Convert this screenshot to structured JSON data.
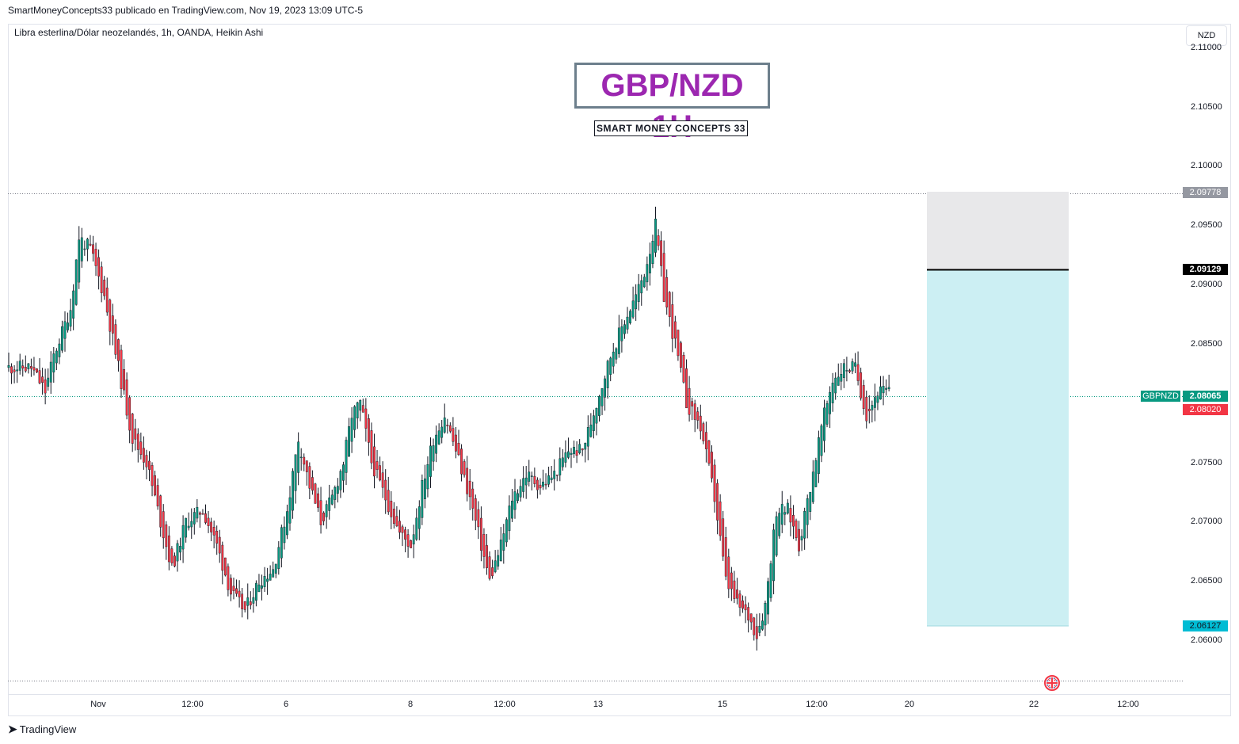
{
  "header": {
    "published_by": "SmartMoneyConcepts33 publicado en TradingView.com, Nov 19, 2023 13:09 UTC-5",
    "symbol_description": "Libra esterlina/Dólar neozelandés, 1h, OANDA, Heikin Ashi",
    "currency_button": "NZD"
  },
  "annotations": {
    "title": "GBP/NZD 1H",
    "subtitle": "SMART MONEY CONCEPTS 33"
  },
  "price_axis": {
    "ticks": [
      "2.11000",
      "2.10500",
      "2.10000",
      "2.09500",
      "2.09000",
      "2.08500",
      "2.07500",
      "2.07000",
      "2.06500",
      "2.06000"
    ]
  },
  "time_axis": {
    "ticks": [
      "Nov",
      "12:00",
      "6",
      "8",
      "12:00",
      "13",
      "15",
      "12:00",
      "20",
      "22",
      "12:00"
    ]
  },
  "price_tags": {
    "stop": "2.09778",
    "entry": "2.09129",
    "last": "2.08065",
    "prev_close": "2.08020",
    "target": "2.06127",
    "symbol": "GBPNZD"
  },
  "colors": {
    "up": "#089981",
    "down": "#f23645",
    "title": "#9c27b0",
    "stop_zone": "#e8e8ea",
    "target_zone": "#cceff3"
  },
  "icons": {
    "flag": "uk-flag-icon",
    "logo": "tradingview-logo-icon"
  },
  "footer": {
    "brand": "TradingView"
  },
  "chart_data": {
    "type": "candlestick",
    "title": "GBP/NZD 1H",
    "subtitle": "SMART MONEY CONCEPTS 33",
    "y_range": [
      2.0575,
      2.1115
    ],
    "key_levels": {
      "high": 2.09778,
      "entry": 2.09129,
      "last": 2.08065,
      "target": 2.06127,
      "low": 2.0565
    },
    "position": {
      "type": "short",
      "stop": 2.09778,
      "entry": 2.09129,
      "target": 2.06127
    },
    "path": [
      [
        0,
        2.083
      ],
      [
        8,
        2.083
      ],
      [
        13,
        2.081
      ],
      [
        16,
        2.084
      ],
      [
        22,
        2.088
      ],
      [
        25,
        2.094
      ],
      [
        29,
        2.093
      ],
      [
        34,
        2.089
      ],
      [
        39,
        2.083
      ],
      [
        44,
        2.077
      ],
      [
        49,
        2.075
      ],
      [
        54,
        2.07
      ],
      [
        58,
        2.066
      ],
      [
        63,
        2.07
      ],
      [
        69,
        2.071
      ],
      [
        74,
        2.068
      ],
      [
        79,
        2.064
      ],
      [
        84,
        2.0625
      ],
      [
        89,
        2.065
      ],
      [
        94,
        2.066
      ],
      [
        99,
        2.071
      ],
      [
        103,
        2.077
      ],
      [
        107,
        2.073
      ],
      [
        111,
        2.07
      ],
      [
        115,
        2.072
      ],
      [
        119,
        2.075
      ],
      [
        122,
        2.079
      ],
      [
        125,
        2.08
      ],
      [
        129,
        2.075
      ],
      [
        134,
        2.072
      ],
      [
        139,
        2.069
      ],
      [
        143,
        2.068
      ],
      [
        147,
        2.073
      ],
      [
        151,
        2.077
      ],
      [
        155,
        2.079
      ],
      [
        159,
        2.076
      ],
      [
        164,
        2.072
      ],
      [
        168,
        2.068
      ],
      [
        171,
        2.065
      ],
      [
        175,
        2.068
      ],
      [
        179,
        2.072
      ],
      [
        184,
        2.074
      ],
      [
        189,
        2.073
      ],
      [
        194,
        2.074
      ],
      [
        199,
        2.076
      ],
      [
        204,
        2.076
      ],
      [
        209,
        2.08
      ],
      [
        214,
        2.084
      ],
      [
        219,
        2.087
      ],
      [
        223,
        2.089
      ],
      [
        226,
        2.091
      ],
      [
        230,
        2.095
      ],
      [
        233,
        2.089
      ],
      [
        237,
        2.085
      ],
      [
        241,
        2.08
      ],
      [
        246,
        2.078
      ],
      [
        251,
        2.072
      ],
      [
        255,
        2.065
      ],
      [
        259,
        2.063
      ],
      [
        263,
        2.062
      ],
      [
        266,
        2.0605
      ],
      [
        269,
        2.063
      ],
      [
        273,
        2.071
      ],
      [
        277,
        2.071
      ],
      [
        281,
        2.068
      ],
      [
        285,
        2.073
      ],
      [
        289,
        2.078
      ],
      [
        293,
        2.082
      ],
      [
        297,
        2.083
      ],
      [
        301,
        2.083
      ],
      [
        305,
        2.079
      ],
      [
        309,
        2.081
      ],
      [
        313,
        2.081
      ]
    ]
  }
}
